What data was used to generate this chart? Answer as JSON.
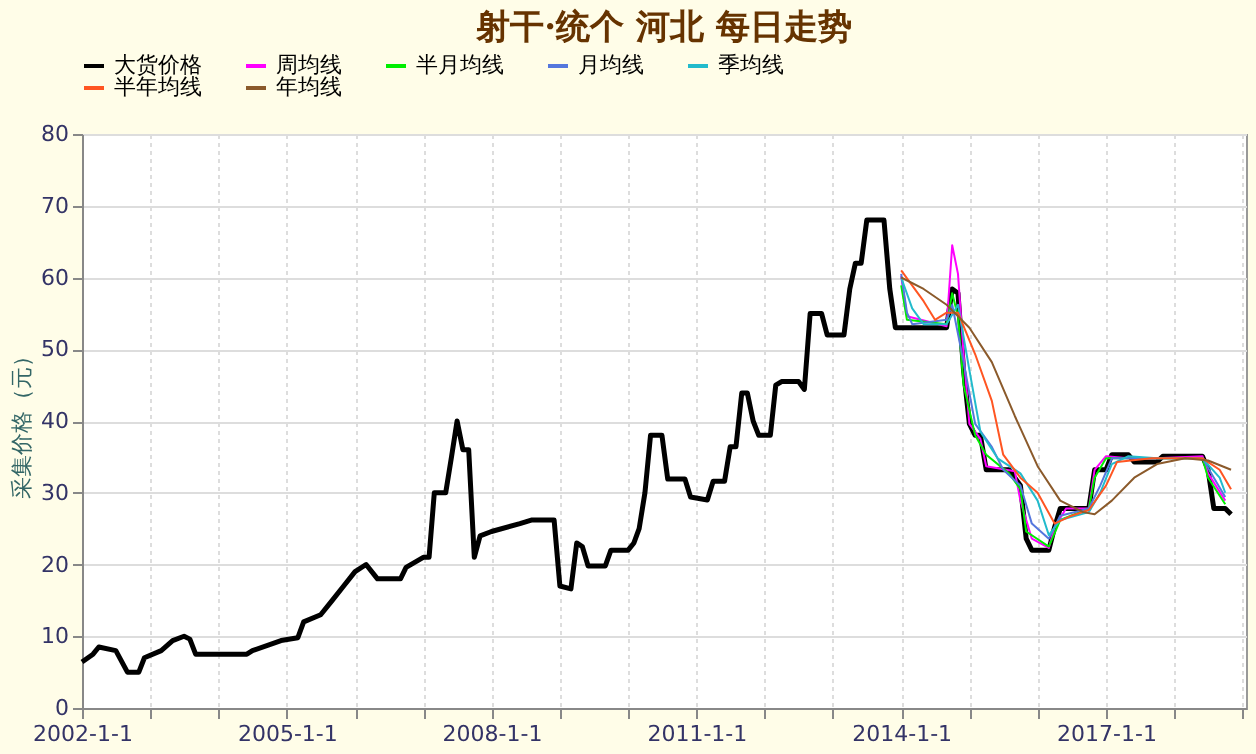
{
  "chart_data": {
    "type": "line",
    "title": "射干·统个 河北 每日走势",
    "ylabel": "采集价格（元）",
    "xlim": [
      "2002-01-01",
      "2019-01-20"
    ],
    "ylim": [
      0,
      80
    ],
    "yticks": [
      0,
      10,
      20,
      30,
      40,
      50,
      60,
      70,
      80
    ],
    "xticks": [
      {
        "value": "2002-01-01",
        "label": "2002-1-1"
      },
      {
        "value": "2003-01-01",
        "label": null
      },
      {
        "value": "2004-01-01",
        "label": null
      },
      {
        "value": "2005-01-01",
        "label": "2005-1-1"
      },
      {
        "value": "2006-01-01",
        "label": null
      },
      {
        "value": "2007-01-01",
        "label": null
      },
      {
        "value": "2008-01-01",
        "label": "2008-1-1"
      },
      {
        "value": "2009-01-01",
        "label": null
      },
      {
        "value": "2010-01-01",
        "label": null
      },
      {
        "value": "2011-01-01",
        "label": "2011-1-1"
      },
      {
        "value": "2012-01-01",
        "label": null
      },
      {
        "value": "2013-01-01",
        "label": null
      },
      {
        "value": "2014-01-01",
        "label": "2014-1-1"
      },
      {
        "value": "2015-01-01",
        "label": null
      },
      {
        "value": "2016-01-01",
        "label": null
      },
      {
        "value": "2017-01-01",
        "label": "2017-1-1"
      },
      {
        "value": "2018-01-01",
        "label": null
      },
      {
        "value": "2019-01-01",
        "label": null
      }
    ],
    "grid": true,
    "legend": "top",
    "line_style": "solid",
    "series": [
      {
        "name": "大货价格",
        "color": "#000000",
        "x": [
          "2002-01",
          "2002-03",
          "2002-04",
          "2002-07",
          "2002-09",
          "2002-11",
          "2002-12",
          "2003-03",
          "2003-05",
          "2003-07",
          "2003-08",
          "2003-09",
          "2004-06",
          "2004-07",
          "2004-12",
          "2005-03",
          "2005-04",
          "2005-07",
          "2005-09",
          "2005-11",
          "2006-01",
          "2006-03",
          "2006-05",
          "2006-09",
          "2006-10",
          "2007-01",
          "2007-02",
          "2007-03",
          "2007-05",
          "2007-06",
          "2007-07",
          "2007-08",
          "2007-09",
          "2007-10",
          "2007-11",
          "2008-01",
          "2008-06",
          "2008-08",
          "2008-12",
          "2009-01",
          "2009-03",
          "2009-04",
          "2009-05",
          "2009-06",
          "2009-09",
          "2009-10",
          "2010-01",
          "2010-02",
          "2010-03",
          "2010-04",
          "2010-05",
          "2010-07",
          "2010-08",
          "2010-11",
          "2010-12",
          "2011-03",
          "2011-04",
          "2011-06",
          "2011-07",
          "2011-08",
          "2011-09",
          "2011-10",
          "2011-11",
          "2011-12",
          "2012-02",
          "2012-03",
          "2012-04",
          "2012-07",
          "2012-08",
          "2012-09",
          "2012-11",
          "2012-12",
          "2013-03",
          "2013-04",
          "2013-05",
          "2013-06",
          "2013-07",
          "2013-10",
          "2013-11",
          "2013-12",
          "2014-09",
          "2014-10",
          "2014-11",
          "2014-12",
          "2015-01",
          "2015-02",
          "2015-03",
          "2015-04",
          "2015-08",
          "2015-10",
          "2015-11",
          "2015-12",
          "2016-03",
          "2016-04",
          "2016-05",
          "2016-10",
          "2016-11",
          "2017-01",
          "2017-02",
          "2017-05",
          "2017-06",
          "2017-10",
          "2017-11",
          "2018-06",
          "2018-07",
          "2018-08",
          "2018-10",
          "2018-11"
        ],
        "values": [
          6.4,
          7.5,
          8.5,
          8,
          5,
          5,
          7,
          8,
          9.4,
          10,
          9.6,
          7.5,
          7.5,
          8,
          9.4,
          9.8,
          12,
          13,
          15,
          17,
          19,
          20,
          18,
          18,
          19.6,
          21,
          21,
          30,
          30,
          35,
          40,
          36,
          36,
          21,
          24,
          24.6,
          25.7,
          26.2,
          26.2,
          17,
          16.6,
          23,
          22.5,
          19.8,
          19.8,
          22,
          22,
          23,
          25,
          30,
          38,
          38,
          31.9,
          31.9,
          29.4,
          29,
          31.6,
          31.6,
          36.4,
          36.4,
          43.9,
          43.9,
          40,
          38,
          38,
          45,
          45.5,
          45.5,
          44.4,
          55,
          55,
          52,
          52,
          58.4,
          62,
          62,
          68,
          68,
          58.4,
          53,
          53,
          58.4,
          57.8,
          47,
          39.6,
          38,
          38,
          33.2,
          33.2,
          31,
          23.6,
          22,
          22,
          25.2,
          27.8,
          27.8,
          33.2,
          33.2,
          35.3,
          35.3,
          34.3,
          34.3,
          35.1,
          35.1,
          33.2,
          27.8,
          27.8,
          27
        ]
      },
      {
        "name": "周均线",
        "color": "#ff00ff",
        "x": [
          "2014-01",
          "2014-02",
          "2014-09",
          "2014-10",
          "2014-11",
          "2014-12",
          "2015-01",
          "2015-03",
          "2015-04",
          "2015-09",
          "2015-10",
          "2015-12",
          "2016-03",
          "2016-04",
          "2016-06",
          "2016-10",
          "2016-11",
          "2017-01",
          "2017-05",
          "2017-10",
          "2018-06",
          "2018-07",
          "2018-10"
        ],
        "values": [
          60.2,
          54.6,
          53.2,
          64.5,
          60.5,
          49.3,
          39.6,
          37.5,
          33.7,
          33,
          28.9,
          23.6,
          22.3,
          25.2,
          27.8,
          27.8,
          33.2,
          35.1,
          34.8,
          34.8,
          35.1,
          32.7,
          28.9
        ]
      },
      {
        "name": "半月均线",
        "color": "#00ee00",
        "x": [
          "2014-01",
          "2014-02",
          "2014-09",
          "2014-10",
          "2014-11",
          "2014-12",
          "2015-02",
          "2015-04",
          "2015-08",
          "2015-10",
          "2015-11",
          "2016-03",
          "2016-05",
          "2016-10",
          "2016-11",
          "2017-01",
          "2017-05",
          "2018-06",
          "2018-07",
          "2018-10"
        ],
        "values": [
          58.9,
          54.1,
          53.5,
          57.8,
          54.6,
          45,
          38,
          35.3,
          32.7,
          30.5,
          24.6,
          22.5,
          26.2,
          27.8,
          32.1,
          34.8,
          34.8,
          34.8,
          32.1,
          28.4
        ]
      },
      {
        "name": "月均线",
        "color": "#5577dd",
        "x": [
          "2014-01",
          "2014-02",
          "2014-03",
          "2014-09",
          "2014-10",
          "2014-12",
          "2015-02",
          "2015-05",
          "2015-07",
          "2015-10",
          "2015-12",
          "2016-03",
          "2016-05",
          "2016-10",
          "2016-12",
          "2017-02",
          "2017-05",
          "2018-06",
          "2018-08",
          "2018-10"
        ],
        "values": [
          60.5,
          55.1,
          53.5,
          54.1,
          56.2,
          48.2,
          39.6,
          36.4,
          33.2,
          31,
          25.7,
          23.6,
          26.8,
          27.8,
          31,
          34.8,
          34.8,
          34.8,
          32.1,
          29.4
        ]
      },
      {
        "name": "季均线",
        "color": "#22bbcc",
        "x": [
          "2014-01",
          "2014-03",
          "2014-05",
          "2014-09",
          "2014-11",
          "2015-01",
          "2015-03",
          "2015-06",
          "2015-10",
          "2016-01",
          "2016-03",
          "2016-05",
          "2016-10",
          "2016-12",
          "2017-02",
          "2017-05",
          "2017-10",
          "2018-06",
          "2018-09",
          "2018-10"
        ],
        "values": [
          60,
          55.7,
          53.5,
          53.5,
          56.2,
          47.1,
          38.5,
          34.8,
          32.7,
          28.9,
          24.1,
          26.2,
          27.3,
          30,
          34,
          35.1,
          34.8,
          34.8,
          32.1,
          30
        ]
      },
      {
        "name": "半年均线",
        "color": "#ff5522",
        "x": [
          "2014-01",
          "2014-05",
          "2014-07",
          "2014-09",
          "2014-11",
          "2015-02",
          "2015-05",
          "2015-07",
          "2015-10",
          "2016-01",
          "2016-04",
          "2016-07",
          "2016-10",
          "2017-01",
          "2017-03",
          "2017-09",
          "2018-06",
          "2018-09",
          "2018-11"
        ],
        "values": [
          61,
          56.7,
          54.1,
          55.1,
          55.1,
          49.3,
          42.8,
          35.3,
          32.1,
          30,
          25.7,
          26.8,
          27.6,
          31,
          34.3,
          34.8,
          34.8,
          33.2,
          30.5
        ]
      },
      {
        "name": "年均线",
        "color": "#8b5a2b",
        "x": [
          "2014-01",
          "2014-05",
          "2014-09",
          "2015-01",
          "2015-05",
          "2015-09",
          "2016-01",
          "2016-05",
          "2016-09",
          "2016-11",
          "2017-02",
          "2017-06",
          "2017-10",
          "2018-03",
          "2018-07",
          "2018-11"
        ],
        "values": [
          60,
          58.4,
          56.2,
          53,
          48.2,
          40.7,
          33.7,
          28.9,
          27.3,
          27,
          28.9,
          32.1,
          34,
          34.8,
          34.5,
          33.2
        ]
      }
    ]
  }
}
